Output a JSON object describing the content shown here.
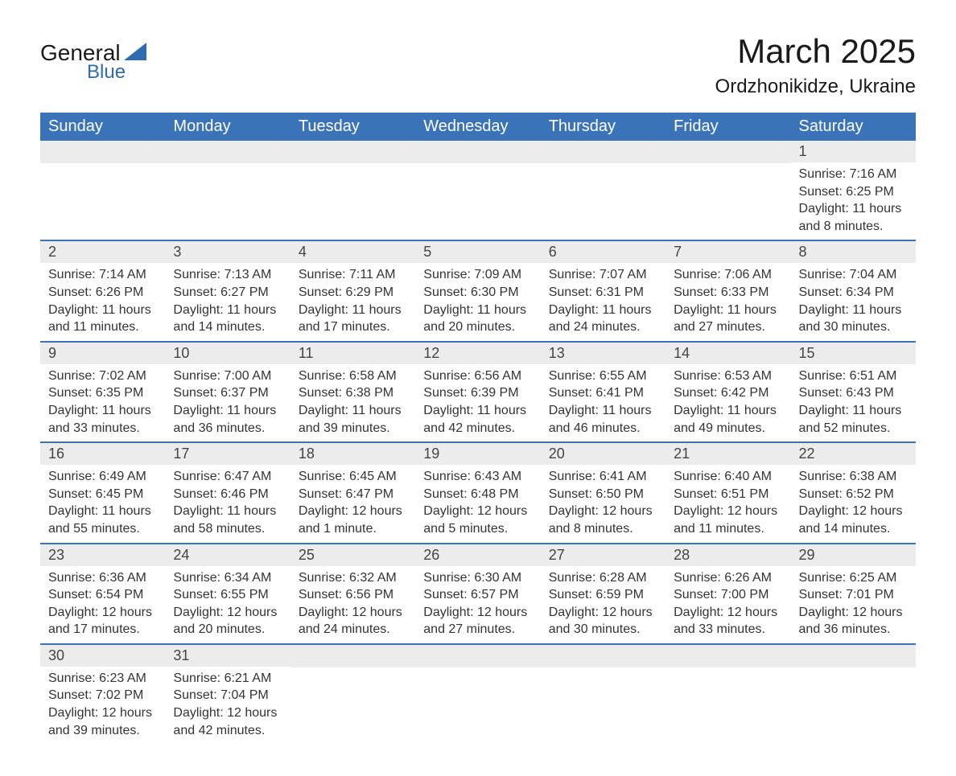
{
  "logo": {
    "text_general": "General",
    "text_blue": "Blue",
    "triangle_color": "#2e6bb0"
  },
  "title": "March 2025",
  "location": "Ordzhonikidze, Ukraine",
  "colors": {
    "header_bg": "#3b73b9",
    "header_text": "#ffffff",
    "daynum_bg": "#ececec",
    "border": "#3b73b9",
    "body_text": "#333333"
  },
  "day_headers": [
    "Sunday",
    "Monday",
    "Tuesday",
    "Wednesday",
    "Thursday",
    "Friday",
    "Saturday"
  ],
  "weeks": [
    [
      null,
      null,
      null,
      null,
      null,
      null,
      {
        "n": "1",
        "sr": "Sunrise: 7:16 AM",
        "ss": "Sunset: 6:25 PM",
        "dl": "Daylight: 11 hours and 8 minutes."
      }
    ],
    [
      {
        "n": "2",
        "sr": "Sunrise: 7:14 AM",
        "ss": "Sunset: 6:26 PM",
        "dl": "Daylight: 11 hours and 11 minutes."
      },
      {
        "n": "3",
        "sr": "Sunrise: 7:13 AM",
        "ss": "Sunset: 6:27 PM",
        "dl": "Daylight: 11 hours and 14 minutes."
      },
      {
        "n": "4",
        "sr": "Sunrise: 7:11 AM",
        "ss": "Sunset: 6:29 PM",
        "dl": "Daylight: 11 hours and 17 minutes."
      },
      {
        "n": "5",
        "sr": "Sunrise: 7:09 AM",
        "ss": "Sunset: 6:30 PM",
        "dl": "Daylight: 11 hours and 20 minutes."
      },
      {
        "n": "6",
        "sr": "Sunrise: 7:07 AM",
        "ss": "Sunset: 6:31 PM",
        "dl": "Daylight: 11 hours and 24 minutes."
      },
      {
        "n": "7",
        "sr": "Sunrise: 7:06 AM",
        "ss": "Sunset: 6:33 PM",
        "dl": "Daylight: 11 hours and 27 minutes."
      },
      {
        "n": "8",
        "sr": "Sunrise: 7:04 AM",
        "ss": "Sunset: 6:34 PM",
        "dl": "Daylight: 11 hours and 30 minutes."
      }
    ],
    [
      {
        "n": "9",
        "sr": "Sunrise: 7:02 AM",
        "ss": "Sunset: 6:35 PM",
        "dl": "Daylight: 11 hours and 33 minutes."
      },
      {
        "n": "10",
        "sr": "Sunrise: 7:00 AM",
        "ss": "Sunset: 6:37 PM",
        "dl": "Daylight: 11 hours and 36 minutes."
      },
      {
        "n": "11",
        "sr": "Sunrise: 6:58 AM",
        "ss": "Sunset: 6:38 PM",
        "dl": "Daylight: 11 hours and 39 minutes."
      },
      {
        "n": "12",
        "sr": "Sunrise: 6:56 AM",
        "ss": "Sunset: 6:39 PM",
        "dl": "Daylight: 11 hours and 42 minutes."
      },
      {
        "n": "13",
        "sr": "Sunrise: 6:55 AM",
        "ss": "Sunset: 6:41 PM",
        "dl": "Daylight: 11 hours and 46 minutes."
      },
      {
        "n": "14",
        "sr": "Sunrise: 6:53 AM",
        "ss": "Sunset: 6:42 PM",
        "dl": "Daylight: 11 hours and 49 minutes."
      },
      {
        "n": "15",
        "sr": "Sunrise: 6:51 AM",
        "ss": "Sunset: 6:43 PM",
        "dl": "Daylight: 11 hours and 52 minutes."
      }
    ],
    [
      {
        "n": "16",
        "sr": "Sunrise: 6:49 AM",
        "ss": "Sunset: 6:45 PM",
        "dl": "Daylight: 11 hours and 55 minutes."
      },
      {
        "n": "17",
        "sr": "Sunrise: 6:47 AM",
        "ss": "Sunset: 6:46 PM",
        "dl": "Daylight: 11 hours and 58 minutes."
      },
      {
        "n": "18",
        "sr": "Sunrise: 6:45 AM",
        "ss": "Sunset: 6:47 PM",
        "dl": "Daylight: 12 hours and 1 minute."
      },
      {
        "n": "19",
        "sr": "Sunrise: 6:43 AM",
        "ss": "Sunset: 6:48 PM",
        "dl": "Daylight: 12 hours and 5 minutes."
      },
      {
        "n": "20",
        "sr": "Sunrise: 6:41 AM",
        "ss": "Sunset: 6:50 PM",
        "dl": "Daylight: 12 hours and 8 minutes."
      },
      {
        "n": "21",
        "sr": "Sunrise: 6:40 AM",
        "ss": "Sunset: 6:51 PM",
        "dl": "Daylight: 12 hours and 11 minutes."
      },
      {
        "n": "22",
        "sr": "Sunrise: 6:38 AM",
        "ss": "Sunset: 6:52 PM",
        "dl": "Daylight: 12 hours and 14 minutes."
      }
    ],
    [
      {
        "n": "23",
        "sr": "Sunrise: 6:36 AM",
        "ss": "Sunset: 6:54 PM",
        "dl": "Daylight: 12 hours and 17 minutes."
      },
      {
        "n": "24",
        "sr": "Sunrise: 6:34 AM",
        "ss": "Sunset: 6:55 PM",
        "dl": "Daylight: 12 hours and 20 minutes."
      },
      {
        "n": "25",
        "sr": "Sunrise: 6:32 AM",
        "ss": "Sunset: 6:56 PM",
        "dl": "Daylight: 12 hours and 24 minutes."
      },
      {
        "n": "26",
        "sr": "Sunrise: 6:30 AM",
        "ss": "Sunset: 6:57 PM",
        "dl": "Daylight: 12 hours and 27 minutes."
      },
      {
        "n": "27",
        "sr": "Sunrise: 6:28 AM",
        "ss": "Sunset: 6:59 PM",
        "dl": "Daylight: 12 hours and 30 minutes."
      },
      {
        "n": "28",
        "sr": "Sunrise: 6:26 AM",
        "ss": "Sunset: 7:00 PM",
        "dl": "Daylight: 12 hours and 33 minutes."
      },
      {
        "n": "29",
        "sr": "Sunrise: 6:25 AM",
        "ss": "Sunset: 7:01 PM",
        "dl": "Daylight: 12 hours and 36 minutes."
      }
    ],
    [
      {
        "n": "30",
        "sr": "Sunrise: 6:23 AM",
        "ss": "Sunset: 7:02 PM",
        "dl": "Daylight: 12 hours and 39 minutes."
      },
      {
        "n": "31",
        "sr": "Sunrise: 6:21 AM",
        "ss": "Sunset: 7:04 PM",
        "dl": "Daylight: 12 hours and 42 minutes."
      },
      null,
      null,
      null,
      null,
      null
    ]
  ]
}
